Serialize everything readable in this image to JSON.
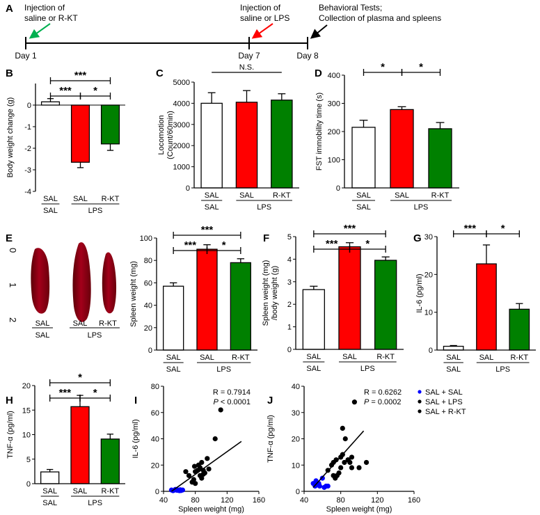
{
  "colors": {
    "SAL": "#ffffff",
    "LPS": "#ff0000",
    "RKT": "#008000",
    "blue": "#0000ff",
    "axis": "#000000"
  },
  "timeline": {
    "label": "A",
    "day1": "Day 1",
    "day7": "Day 7",
    "day8": "Day 8",
    "note1": [
      "Injection of",
      "saline or R-KT"
    ],
    "note2": [
      "Injection of",
      "saline or LPS"
    ],
    "note3": [
      "Behavioral Tests;",
      "Collection of plasma and spleens"
    ]
  },
  "photo": {
    "label": "E",
    "ruler_marks": [
      "0",
      "1",
      "2"
    ],
    "groups_top": [
      "SAL",
      "SAL",
      "R-KT"
    ],
    "groups_bottom": [
      "SAL",
      "LPS"
    ]
  },
  "chart_data": [
    {
      "panel": "B",
      "type": "bar",
      "categories": [
        "SAL/SAL",
        "LPS/SAL",
        "LPS/R-KT"
      ],
      "values": [
        0.15,
        -2.65,
        -1.8
      ],
      "errors": [
        0.15,
        0.25,
        0.3
      ],
      "ylabel": "Body weight change (g)",
      "ylim": [
        -4,
        1
      ],
      "yticks": [
        -4,
        -3,
        -2,
        -1,
        0
      ],
      "group_top": [
        "SAL",
        "SAL",
        "R-KT"
      ],
      "group_bottom": [
        "SAL",
        "LPS"
      ],
      "sig": [
        {
          "a": 0,
          "b": 2,
          "label": "***",
          "level": 0
        },
        {
          "a": 0,
          "b": 1,
          "label": "***",
          "level": 1
        },
        {
          "a": 1,
          "b": 2,
          "label": "*",
          "level": 1
        }
      ]
    },
    {
      "panel": "C",
      "type": "bar",
      "categories": [
        "SAL/SAL",
        "LPS/SAL",
        "LPS/R-KT"
      ],
      "values": [
        4000,
        4050,
        4150
      ],
      "errors": [
        500,
        550,
        300
      ],
      "ylabel": "Locomotion\n(Count/60min)",
      "ylim": [
        0,
        5000
      ],
      "yticks": [
        0,
        1000,
        2000,
        3000,
        4000,
        5000
      ],
      "group_top": [
        "SAL",
        "SAL",
        "R-KT"
      ],
      "group_bottom": [
        "SAL",
        "LPS"
      ],
      "ns": "N.S."
    },
    {
      "panel": "D",
      "type": "bar",
      "categories": [
        "SAL/SAL",
        "LPS/SAL",
        "LPS/R-KT"
      ],
      "values": [
        215,
        278,
        210
      ],
      "errors": [
        25,
        10,
        22
      ],
      "ylabel": "FST immobility time (s)",
      "ylim": [
        0,
        400
      ],
      "yticks": [
        0,
        100,
        200,
        300,
        400
      ],
      "group_top": [
        "SAL",
        "SAL",
        "R-KT"
      ],
      "group_bottom": [
        "SAL",
        "LPS"
      ],
      "sig": [
        {
          "a": 0,
          "b": 1,
          "label": "*",
          "level": 0
        },
        {
          "a": 1,
          "b": 2,
          "label": "*",
          "level": 0
        }
      ]
    },
    {
      "panel": "",
      "type": "bar",
      "categories": [
        "SAL/SAL",
        "LPS/SAL",
        "LPS/R-KT"
      ],
      "values": [
        57,
        90,
        78
      ],
      "errors": [
        3,
        4,
        3.5
      ],
      "ylabel": "Spleen weight (mg)",
      "ylim": [
        0,
        100
      ],
      "yticks": [
        0,
        20,
        40,
        60,
        80,
        100
      ],
      "group_top": [
        "SAL",
        "SAL",
        "R-KT"
      ],
      "group_bottom": [
        "SAL",
        "LPS"
      ],
      "sig": [
        {
          "a": 0,
          "b": 2,
          "label": "***",
          "level": 0
        },
        {
          "a": 0,
          "b": 1,
          "label": "***",
          "level": 1
        },
        {
          "a": 1,
          "b": 2,
          "label": "*",
          "level": 1
        }
      ]
    },
    {
      "panel": "F",
      "type": "bar",
      "categories": [
        "SAL/SAL",
        "LPS/SAL",
        "LPS/R-KT"
      ],
      "values": [
        2.65,
        4.55,
        3.95
      ],
      "errors": [
        0.15,
        0.18,
        0.15
      ],
      "ylabel": "Spleen weight (mg)\n/body weight (g)",
      "ylim": [
        0,
        5
      ],
      "yticks": [
        0,
        1,
        2,
        3,
        4,
        5
      ],
      "group_top": [
        "SAL",
        "SAL",
        "R-KT"
      ],
      "group_bottom": [
        "SAL",
        "LPS"
      ],
      "sig": [
        {
          "a": 0,
          "b": 2,
          "label": "***",
          "level": 0
        },
        {
          "a": 0,
          "b": 1,
          "label": "***",
          "level": 1
        },
        {
          "a": 1,
          "b": 2,
          "label": "*",
          "level": 1
        }
      ]
    },
    {
      "panel": "G",
      "type": "bar",
      "categories": [
        "SAL/SAL",
        "LPS/SAL",
        "LPS/R-KT"
      ],
      "values": [
        1.0,
        22.8,
        10.8
      ],
      "errors": [
        0.2,
        5,
        1.5
      ],
      "ylabel": "IL-6 (pg/ml)",
      "ylim": [
        0,
        30
      ],
      "yticks": [
        0,
        10,
        20,
        30
      ],
      "group_top": [
        "SAL",
        "SAL",
        "R-KT"
      ],
      "group_bottom": [
        "SAL",
        "LPS"
      ],
      "sig": [
        {
          "a": 0,
          "b": 1,
          "label": "***",
          "level": 0
        },
        {
          "a": 1,
          "b": 2,
          "label": "*",
          "level": 0
        }
      ]
    },
    {
      "panel": "H",
      "type": "bar",
      "categories": [
        "SAL/SAL",
        "LPS/SAL",
        "LPS/R-KT"
      ],
      "values": [
        2.4,
        15.7,
        9.1
      ],
      "errors": [
        0.5,
        2.3,
        1.0
      ],
      "ylabel": "TNF-α (pg/ml)",
      "ylim": [
        0,
        20
      ],
      "yticks": [
        0,
        5,
        10,
        15,
        20
      ],
      "group_top": [
        "SAL",
        "SAL",
        "R-KT"
      ],
      "group_bottom": [
        "SAL",
        "LPS"
      ],
      "sig": [
        {
          "a": 0,
          "b": 2,
          "label": "*",
          "level": 0
        },
        {
          "a": 0,
          "b": 1,
          "label": "***",
          "level": 1
        },
        {
          "a": 1,
          "b": 2,
          "label": "*",
          "level": 1
        }
      ]
    },
    {
      "panel": "I",
      "type": "scatter",
      "xlabel": "Spleen weight (mg)",
      "ylabel": "IL-6 (pg/ml)",
      "xlim": [
        40,
        160
      ],
      "ylim": [
        0,
        80
      ],
      "xticks": [
        40,
        80,
        120,
        160
      ],
      "yticks": [
        0,
        20,
        40,
        60,
        80
      ],
      "R": "R = 0.7914",
      "P_label": "P",
      "P_value": " < 0.0001",
      "fit": [
        [
          50,
          0
        ],
        [
          138,
          38
        ]
      ],
      "series": [
        {
          "name": "SAL + SAL",
          "color": "blue",
          "points": [
            [
              50,
              1
            ],
            [
              52,
              0.5
            ],
            [
              54,
              1
            ],
            [
              55,
              1.5
            ],
            [
              57,
              0.8
            ],
            [
              58,
              1
            ],
            [
              60,
              0.5
            ],
            [
              61,
              1.2
            ],
            [
              62,
              0.6
            ],
            [
              64,
              1
            ]
          ]
        },
        {
          "name": "SAL + LPS",
          "color": "red",
          "points": [
            [
              79,
              19
            ],
            [
              80,
              15
            ],
            [
              84,
              20
            ],
            [
              86,
              12
            ],
            [
              88,
              22
            ],
            [
              90,
              16
            ],
            [
              92,
              14
            ],
            [
              95,
              25
            ],
            [
              97,
              17
            ],
            [
              105,
              40
            ],
            [
              112,
              62
            ]
          ]
        },
        {
          "name": "SAL + R-KT",
          "color": "green",
          "points": [
            [
              68,
              15
            ],
            [
              72,
              12
            ],
            [
              76,
              7
            ],
            [
              78,
              9
            ],
            [
              80,
              6
            ],
            [
              83,
              16
            ],
            [
              86,
              18
            ],
            [
              88,
              10
            ],
            [
              90,
              13
            ]
          ]
        }
      ]
    },
    {
      "panel": "J",
      "type": "scatter",
      "xlabel": "Spleen weight (mg)",
      "ylabel": "TNF-α (pg/ml)",
      "xlim": [
        40,
        160
      ],
      "ylim": [
        0,
        40
      ],
      "xticks": [
        40,
        80,
        120,
        160
      ],
      "yticks": [
        0,
        10,
        20,
        30,
        40
      ],
      "R": "R = 0.6262",
      "P_label": "P",
      "P_value": " = 0.0002",
      "fit": [
        [
          50,
          1.5
        ],
        [
          105,
          23
        ]
      ],
      "legend": "top-right",
      "series": [
        {
          "name": "SAL + SAL",
          "color": "blue",
          "points": [
            [
              50,
              3
            ],
            [
              52,
              2
            ],
            [
              53,
              4
            ],
            [
              55,
              2.5
            ],
            [
              56,
              3
            ],
            [
              57,
              2
            ],
            [
              60,
              5
            ],
            [
              62,
              1.5
            ],
            [
              64,
              2
            ],
            [
              66,
              2
            ]
          ]
        },
        {
          "name": "SAL + LPS",
          "color": "red",
          "points": [
            [
              72,
              11
            ],
            [
              75,
              12
            ],
            [
              78,
              7
            ],
            [
              80,
              13
            ],
            [
              82,
              24
            ],
            [
              85,
              20
            ],
            [
              88,
              12
            ],
            [
              90,
              11
            ],
            [
              92,
              13
            ],
            [
              95,
              34
            ],
            [
              100,
              9
            ],
            [
              108,
              11
            ]
          ]
        },
        {
          "name": "SAL + R-KT",
          "color": "green",
          "points": [
            [
              66,
              8
            ],
            [
              70,
              10
            ],
            [
              72,
              6
            ],
            [
              74,
              5
            ],
            [
              76,
              6
            ],
            [
              80,
              9
            ],
            [
              82,
              14
            ],
            [
              84,
              11
            ],
            [
              88,
              12
            ],
            [
              92,
              9
            ]
          ]
        }
      ]
    }
  ]
}
